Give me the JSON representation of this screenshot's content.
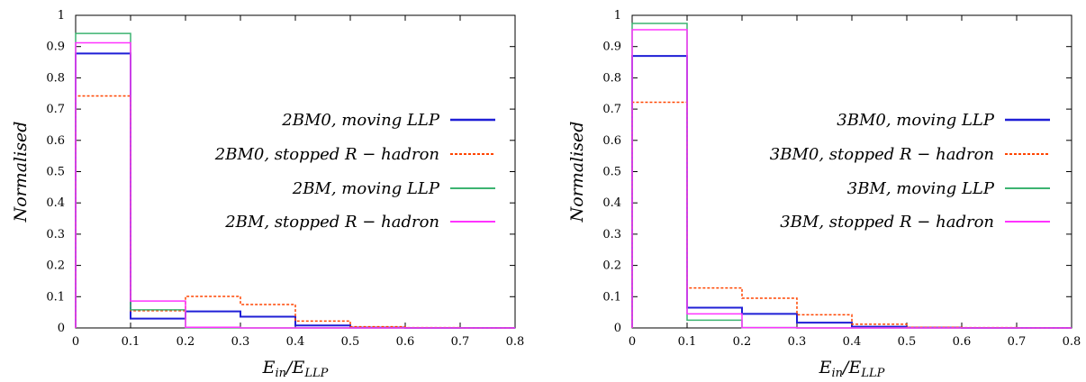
{
  "chart_data": [
    {
      "type": "step",
      "ylabel": "Normalised",
      "xlabel_main": "E",
      "xlabel_sub1": "in",
      "xlabel_mid": "/E",
      "xlabel_sub2": "LLP",
      "xlim": [
        0,
        0.8
      ],
      "ylim": [
        0,
        1
      ],
      "xticks": [
        "0",
        "0.1",
        "0.2",
        "0.3",
        "0.4",
        "0.5",
        "0.6",
        "0.7",
        "0.8"
      ],
      "yticks": [
        "0",
        "0.1",
        "0.2",
        "0.3",
        "0.4",
        "0.5",
        "0.6",
        "0.7",
        "0.8",
        "0.9",
        "1"
      ],
      "bin_edges": [
        0,
        0.1,
        0.2,
        0.3,
        0.4,
        0.5,
        0.6,
        0.7,
        0.8
      ],
      "legend_position": "center-right",
      "series": [
        {
          "name": "2BM0, moving LLP",
          "color": "#1f1fd6",
          "dash": "solid",
          "values": [
            0.878,
            0.03,
            0.053,
            0.036,
            0.008,
            0.001,
            0,
            0
          ]
        },
        {
          "name": "2BM0, stopped R − hadron",
          "color": "#ff4500",
          "dash": "dashed",
          "values": [
            0.742,
            0.055,
            0.101,
            0.075,
            0.022,
            0.004,
            0.001,
            0
          ]
        },
        {
          "name": "2BM, moving LLP",
          "color": "#3cb371",
          "dash": "solid",
          "values": [
            0.942,
            0.058,
            0.001,
            0,
            0,
            0,
            0,
            0
          ]
        },
        {
          "name": "2BM, stopped R − hadron",
          "color": "#ff33ff",
          "dash": "solid",
          "values": [
            0.912,
            0.086,
            0.002,
            0,
            0,
            0,
            0,
            0
          ]
        }
      ]
    },
    {
      "type": "step",
      "ylabel": "Normalised",
      "xlabel_main": "E",
      "xlabel_sub1": "in",
      "xlabel_mid": "/E",
      "xlabel_sub2": "LLP",
      "xlim": [
        0,
        0.8
      ],
      "ylim": [
        0,
        1
      ],
      "xticks": [
        "0",
        "0.1",
        "0.2",
        "0.3",
        "0.4",
        "0.5",
        "0.6",
        "0.7",
        "0.8"
      ],
      "yticks": [
        "0",
        "0.1",
        "0.2",
        "0.3",
        "0.4",
        "0.5",
        "0.6",
        "0.7",
        "0.8",
        "0.9",
        "1"
      ],
      "bin_edges": [
        0,
        0.1,
        0.2,
        0.3,
        0.4,
        0.5,
        0.6,
        0.7,
        0.8
      ],
      "legend_position": "center-right",
      "series": [
        {
          "name": "3BM0, moving LLP",
          "color": "#1f1fd6",
          "dash": "solid",
          "values": [
            0.87,
            0.065,
            0.045,
            0.017,
            0.004,
            0.001,
            0,
            0
          ]
        },
        {
          "name": "3BM0, stopped R − hadron",
          "color": "#ff4500",
          "dash": "dashed",
          "values": [
            0.722,
            0.128,
            0.095,
            0.042,
            0.012,
            0.002,
            0.001,
            0
          ]
        },
        {
          "name": "3BM, moving LLP",
          "color": "#3cb371",
          "dash": "solid",
          "values": [
            0.974,
            0.025,
            0.001,
            0,
            0,
            0,
            0,
            0
          ]
        },
        {
          "name": "3BM, stopped R − hadron",
          "color": "#ff33ff",
          "dash": "solid",
          "values": [
            0.954,
            0.045,
            0.001,
            0,
            0,
            0,
            0,
            0
          ]
        }
      ]
    }
  ]
}
